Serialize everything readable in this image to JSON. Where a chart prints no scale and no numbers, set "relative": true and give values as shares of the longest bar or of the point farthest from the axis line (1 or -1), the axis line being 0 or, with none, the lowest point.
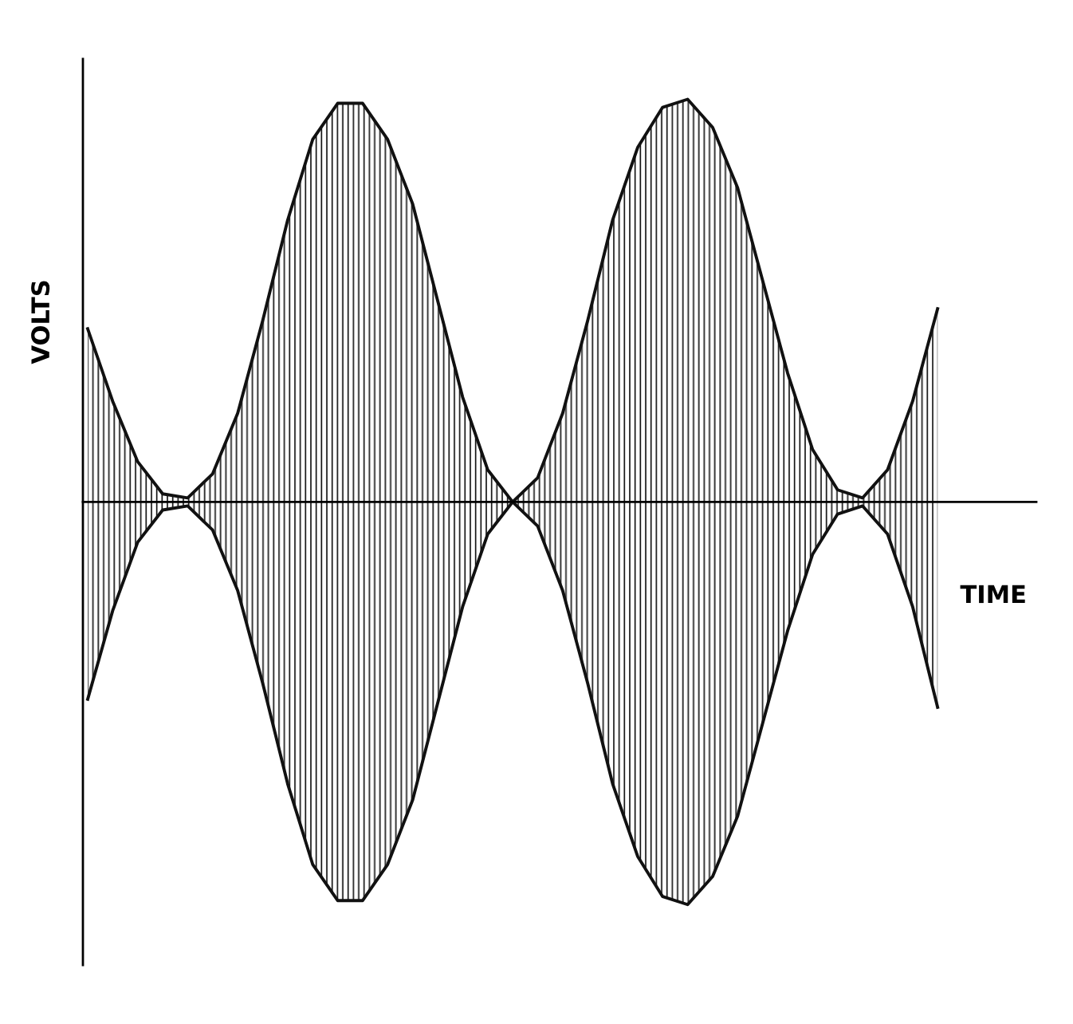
{
  "chart_data": {
    "type": "area",
    "relative": true,
    "xlabel": "TIME",
    "ylabel": "VOLTS",
    "categories": [
      null,
      null,
      null,
      null,
      null,
      null,
      null,
      null,
      null,
      null,
      null,
      null,
      null,
      null,
      null,
      null,
      null,
      null,
      null,
      null,
      null,
      null,
      null,
      null,
      null,
      null,
      null,
      null,
      null,
      null,
      null,
      null,
      null,
      null,
      null
    ],
    "series": [
      {
        "color": "#111111",
        "values": [
          0.43,
          0.25,
          0.1,
          0.02,
          0.01,
          0.07,
          0.22,
          0.45,
          0.7,
          0.9,
          0.99,
          0.99,
          0.9,
          0.74,
          0.5,
          0.26,
          0.08,
          0,
          0.06,
          0.22,
          0.45,
          0.7,
          0.88,
          0.98,
          1.0,
          0.93,
          0.78,
          0.55,
          0.32,
          0.13,
          0.03,
          0.01,
          0.08,
          0.25,
          0.48
        ]
      },
      {
        "color": "#111111",
        "values": [
          -0.49,
          -0.27,
          -0.1,
          -0.02,
          -0.01,
          -0.07,
          -0.22,
          -0.45,
          -0.7,
          -0.9,
          -0.99,
          -0.99,
          -0.9,
          -0.74,
          -0.5,
          -0.26,
          -0.08,
          0,
          -0.06,
          -0.22,
          -0.45,
          -0.7,
          -0.88,
          -0.98,
          -1.0,
          -0.93,
          -0.78,
          -0.55,
          -0.32,
          -0.13,
          -0.03,
          -0.01,
          -0.08,
          -0.26,
          -0.51
        ]
      }
    ],
    "marker": "none",
    "line_style": "solid"
  }
}
